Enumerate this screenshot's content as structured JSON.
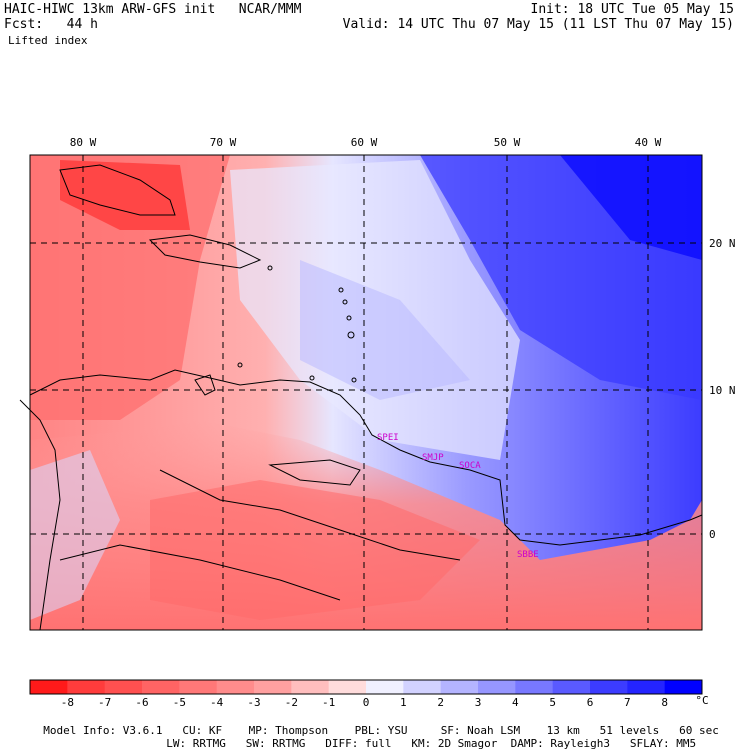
{
  "header": {
    "title": "HAIC-HIWC 13km ARW-GFS init   NCAR/MMM",
    "forecast": "Fcst:   44 h",
    "field": "Lifted index",
    "init": "Init: 18 UTC Tue 05 May 15",
    "valid": "Valid: 14 UTC Thu 07 May 15 (11 LST Thu 07 May 15)"
  },
  "map": {
    "lon_labels": [
      "80 W",
      "70 W",
      "60 W",
      "50 W",
      "40 W"
    ],
    "lat_labels": [
      "20 N",
      "10 N",
      "0"
    ],
    "stations": [
      "SPEI",
      "SMJP",
      "SOCA",
      "SBBE"
    ]
  },
  "colorbar": {
    "labels": [
      "-8",
      "-7",
      "-6",
      "-5",
      "-4",
      "-3",
      "-2",
      "-1",
      "0",
      "1",
      "2",
      "3",
      "4",
      "5",
      "6",
      "7",
      "8"
    ],
    "unit": "°C",
    "colors": [
      "#ff1a1a",
      "#ff3c3c",
      "#ff5050",
      "#ff6464",
      "#ff7878",
      "#ff8c8c",
      "#ffa0a0",
      "#ffbebe",
      "#ffdcdc",
      "#f0f0ff",
      "#d2d2ff",
      "#b4b4ff",
      "#9696ff",
      "#7878ff",
      "#5a5aff",
      "#3c3cff",
      "#2424ff",
      "#0000ff"
    ]
  },
  "footer": {
    "line1": [
      "Model Info: V3.6.1",
      "CU: KF",
      "MP: Thompson",
      "PBL: YSU",
      "SF: Noah LSM",
      "13 km",
      "51 levels",
      "60 sec"
    ],
    "line2": [
      "LW: RRTMG",
      "SW: RRTMG",
      "DIFF: full",
      "KM: 2D Smagor",
      "DAMP: Rayleigh3",
      "SFLAY: MM5"
    ]
  }
}
